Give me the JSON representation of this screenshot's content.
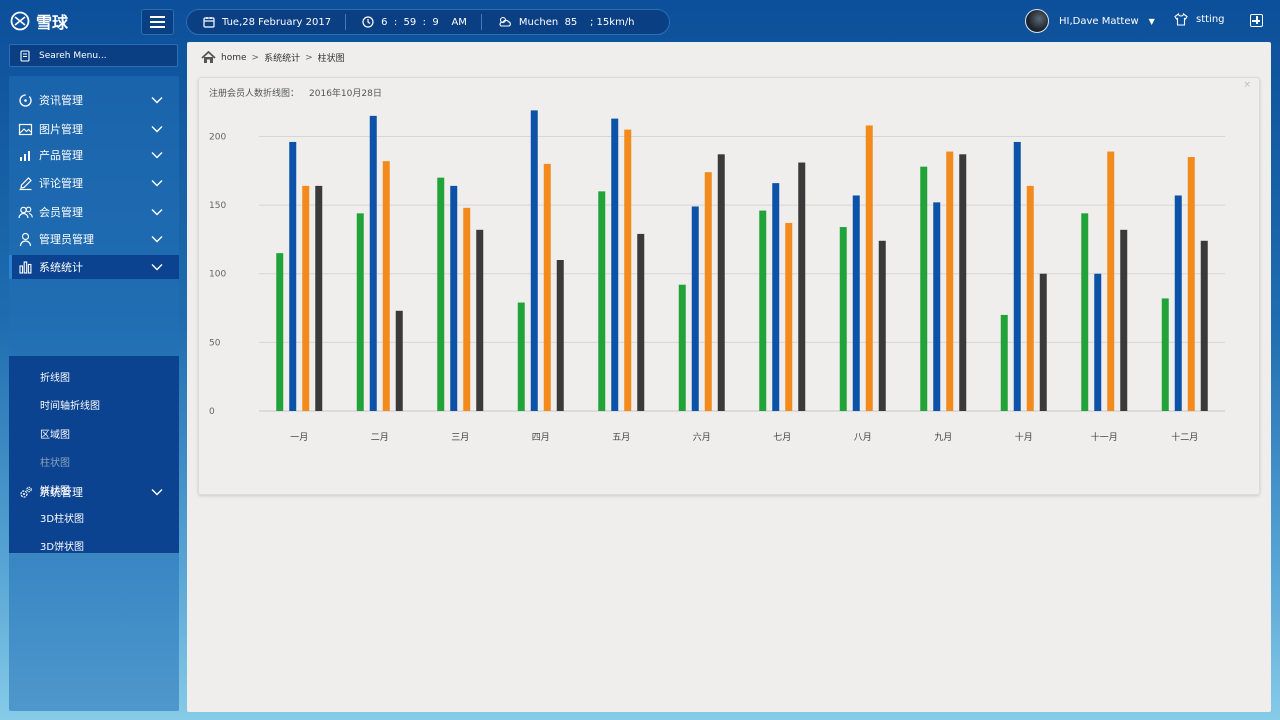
{
  "app": {
    "logo_text": "雪球"
  },
  "topbar": {
    "date": "Tue,28  February  2017",
    "time": "6  :  59  :  9    AM",
    "weather": "Muchen  85    ; 15km/h",
    "user_name": "HI,Dave Mattew",
    "setting_label": "stting"
  },
  "search": {
    "placeholder": "Seareh Menu..."
  },
  "sidebar": {
    "items": [
      {
        "label": "资讯管理",
        "icon": "news-icon"
      },
      {
        "label": "图片管理",
        "icon": "image-icon"
      },
      {
        "label": "产品管理",
        "icon": "product-icon"
      },
      {
        "label": "评论管理",
        "icon": "comment-icon"
      },
      {
        "label": "会员管理",
        "icon": "members-icon"
      },
      {
        "label": "管理员管理",
        "icon": "admin-icon"
      },
      {
        "label": "系统统计",
        "icon": "stats-icon"
      },
      {
        "label": "系统管理",
        "icon": "gears-icon"
      }
    ],
    "submenu": [
      "折线图",
      "时间轴折线图",
      "区域图",
      "柱状图",
      "饼状图",
      "3D柱状图",
      "3D饼状图"
    ],
    "active_submenu": "柱状图"
  },
  "breadcrumb": {
    "home": "home",
    "level1": "系统统计",
    "level2": "柱状图",
    "separator": ">"
  },
  "panel": {
    "title": "注册会员人数折线图：",
    "date": "2016年10月28日",
    "close": "×"
  },
  "colors": {
    "green": "#22a33a",
    "blue": "#0b52a8",
    "orange": "#f28a1c",
    "dark": "#3a3a3a"
  },
  "chart_data": {
    "type": "bar",
    "categories": [
      "一月",
      "二月",
      "三月",
      "四月",
      "五月",
      "六月",
      "七月",
      "八月",
      "九月",
      "十月",
      "十一月",
      "十二月"
    ],
    "series": [
      {
        "color": "#22a33a",
        "values": [
          115,
          144,
          170,
          79,
          160,
          92,
          146,
          134,
          178,
          70,
          144,
          82
        ]
      },
      {
        "color": "#0b52a8",
        "values": [
          196,
          215,
          164,
          219,
          213,
          149,
          166,
          157,
          152,
          196,
          100,
          157
        ]
      },
      {
        "color": "#f28a1c",
        "values": [
          164,
          182,
          148,
          180,
          205,
          174,
          137,
          208,
          189,
          164,
          189,
          185
        ]
      },
      {
        "color": "#3a3a3a",
        "values": [
          164,
          73,
          132,
          110,
          129,
          187,
          181,
          124,
          187,
          100,
          132,
          124
        ]
      }
    ],
    "yticks": [
      0,
      50,
      100,
      150,
      200
    ],
    "ylim": [
      0,
      220
    ],
    "grid": true,
    "legend": "none"
  }
}
